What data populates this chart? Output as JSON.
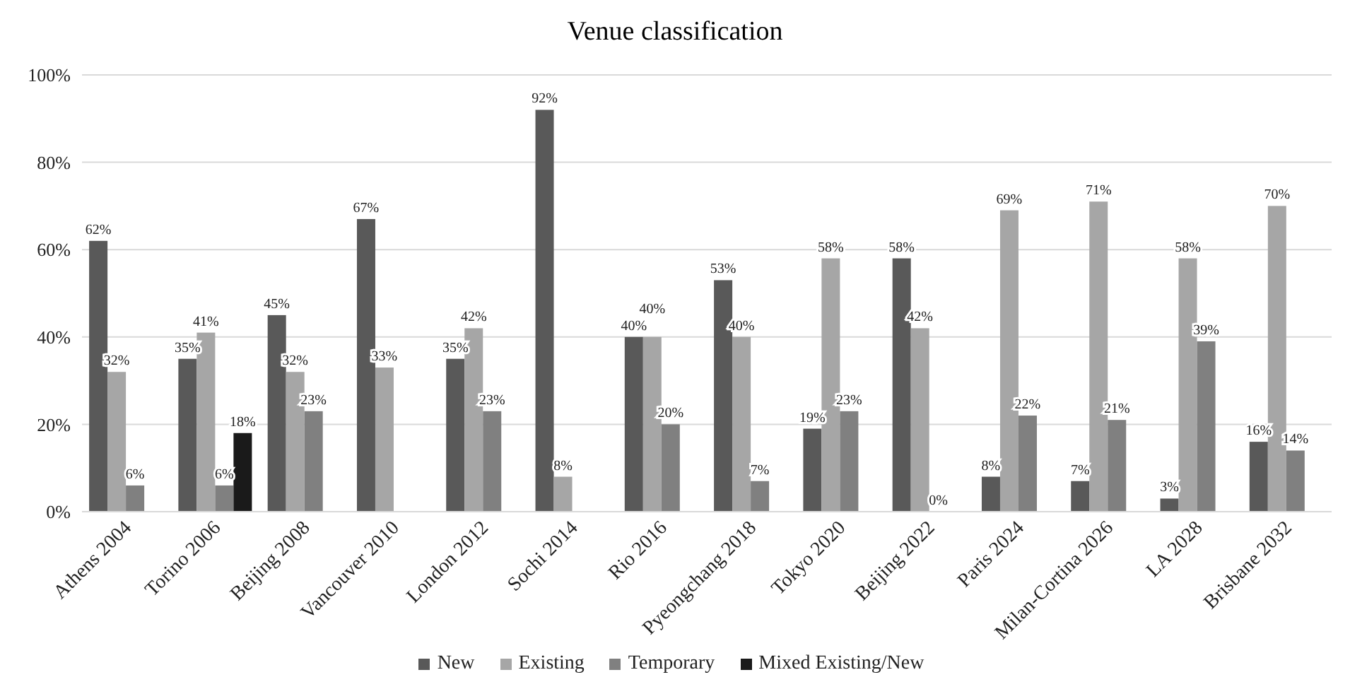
{
  "chart_data": {
    "type": "bar",
    "title": "Venue classification",
    "categories": [
      "Athens 2004",
      "Torino 2006",
      "Beijing 2008",
      "Vancouver 2010",
      "London 2012",
      "Sochi 2014",
      "Rio 2016",
      "Pyeongchang 2018",
      "Tokyo 2020",
      "Beijing 2022",
      "Paris 2024",
      "Milan-Cortina 2026",
      "LA 2028",
      "Brisbane 2032"
    ],
    "series": [
      {
        "name": "New",
        "color": "#595959",
        "values": [
          62,
          35,
          45,
          67,
          35,
          92,
          40,
          53,
          19,
          58,
          8,
          7,
          3,
          16
        ],
        "value_labels": [
          "62%",
          "35%",
          "45%",
          "67%",
          "35%",
          "92%",
          "40%",
          "53%",
          "19%",
          "58%",
          "8%",
          "7%",
          "3%",
          "16%"
        ]
      },
      {
        "name": "Existing",
        "color": "#a6a6a6",
        "values": [
          32,
          41,
          32,
          33,
          42,
          8,
          40,
          40,
          58,
          42,
          69,
          71,
          58,
          70
        ],
        "value_labels": [
          "32%",
          "41%",
          "32%",
          "33%",
          "42%",
          "8%",
          "40%",
          "40%",
          "58%",
          "42%",
          "69%",
          "71%",
          "58%",
          "70%"
        ]
      },
      {
        "name": "Temporary",
        "color": "#808080",
        "values": [
          6,
          6,
          23,
          null,
          23,
          null,
          20,
          7,
          23,
          0,
          22,
          21,
          39,
          14
        ],
        "value_labels": [
          "6%",
          "6%",
          "23%",
          null,
          "23%",
          null,
          "20%",
          "7%",
          "23%",
          "0%",
          "22%",
          "21%",
          "39%",
          "14%"
        ]
      },
      {
        "name": "Mixed Existing/New",
        "color": "#1a1a1a",
        "values": [
          null,
          18,
          null,
          null,
          null,
          null,
          null,
          null,
          null,
          null,
          null,
          null,
          null,
          null
        ],
        "value_labels": [
          null,
          "18%",
          null,
          null,
          null,
          null,
          null,
          null,
          null,
          null,
          null,
          null,
          null,
          null
        ]
      }
    ],
    "ylim": [
      0,
      100
    ],
    "yticks": [
      {
        "value": 0,
        "label": "0%"
      },
      {
        "value": 20,
        "label": "20%"
      },
      {
        "value": 40,
        "label": "40%"
      },
      {
        "value": 60,
        "label": "60%"
      },
      {
        "value": 80,
        "label": "80%"
      },
      {
        "value": 100,
        "label": "100%"
      }
    ],
    "grid": "y",
    "legend": "bottom"
  }
}
